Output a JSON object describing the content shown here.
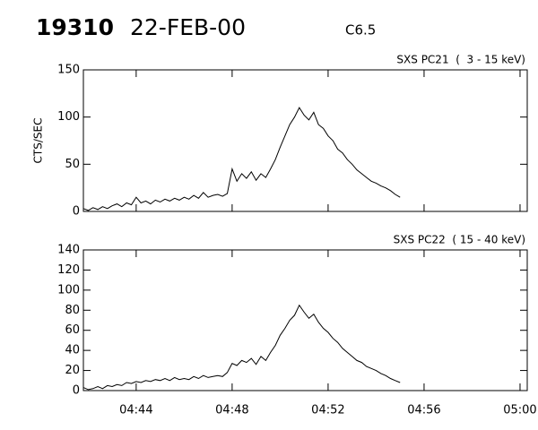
{
  "header": {
    "event": "19310",
    "date": "22-FEB-00",
    "class": "C6.5"
  },
  "chart_data": [
    {
      "type": "line",
      "title": "SXS PC21  (  3 - 15 keV)",
      "y_label": "CTS/SEC",
      "color": "#000000",
      "x": [
        41.8,
        42.0,
        42.2,
        42.4,
        42.6,
        42.8,
        43.0,
        43.2,
        43.4,
        43.6,
        43.8,
        44.0,
        44.2,
        44.4,
        44.6,
        44.8,
        45.0,
        45.2,
        45.4,
        45.6,
        45.8,
        46.0,
        46.2,
        46.4,
        46.6,
        46.8,
        47.0,
        47.2,
        47.4,
        47.6,
        47.8,
        48.0,
        48.2,
        48.4,
        48.6,
        48.8,
        49.0,
        49.2,
        49.4,
        49.6,
        49.8,
        50.0,
        50.2,
        50.4,
        50.6,
        50.8,
        51.0,
        51.2,
        51.4,
        51.6,
        51.8,
        52.0,
        52.2,
        52.4,
        52.6,
        52.8,
        53.0,
        53.2,
        53.4,
        53.6,
        53.8,
        54.0,
        54.2,
        54.4,
        54.6,
        54.8,
        55.0
      ],
      "values": [
        3,
        1,
        4,
        2,
        5,
        3,
        6,
        8,
        5,
        9,
        7,
        15,
        9,
        11,
        8,
        12,
        10,
        13,
        11,
        14,
        12,
        15,
        13,
        17,
        14,
        20,
        15,
        17,
        18,
        16,
        19,
        45,
        32,
        40,
        35,
        42,
        33,
        40,
        36,
        45,
        55,
        68,
        80,
        92,
        100,
        110,
        102,
        97,
        105,
        92,
        88,
        80,
        75,
        66,
        62,
        55,
        50,
        44,
        40,
        36,
        32,
        30,
        27,
        25,
        22,
        18,
        15
      ],
      "xlim": [
        41.8,
        60.3
      ],
      "xticks": [
        {
          "value": 44,
          "label": "04:44"
        },
        {
          "value": 48,
          "label": "04:48"
        },
        {
          "value": 52,
          "label": "04:52"
        },
        {
          "value": 56,
          "label": "04:56"
        },
        {
          "value": 60,
          "label": "05:00"
        }
      ],
      "ylim": [
        0,
        150
      ],
      "yticks": [
        0,
        50,
        100,
        150
      ]
    },
    {
      "type": "line",
      "title": "SXS PC22  ( 15 - 40 keV)",
      "color": "#000000",
      "x": [
        41.8,
        42.0,
        42.2,
        42.4,
        42.6,
        42.8,
        43.0,
        43.2,
        43.4,
        43.6,
        43.8,
        44.0,
        44.2,
        44.4,
        44.6,
        44.8,
        45.0,
        45.2,
        45.4,
        45.6,
        45.8,
        46.0,
        46.2,
        46.4,
        46.6,
        46.8,
        47.0,
        47.2,
        47.4,
        47.6,
        47.8,
        48.0,
        48.2,
        48.4,
        48.6,
        48.8,
        49.0,
        49.2,
        49.4,
        49.6,
        49.8,
        50.0,
        50.2,
        50.4,
        50.6,
        50.8,
        51.0,
        51.2,
        51.4,
        51.6,
        51.8,
        52.0,
        52.2,
        52.4,
        52.6,
        52.8,
        53.0,
        53.2,
        53.4,
        53.6,
        53.8,
        54.0,
        54.2,
        54.4,
        54.6,
        54.8,
        55.0
      ],
      "values": [
        3,
        1,
        2,
        4,
        2,
        5,
        4,
        6,
        5,
        8,
        7,
        9,
        8,
        10,
        9,
        11,
        10,
        12,
        10,
        13,
        11,
        12,
        11,
        14,
        12,
        15,
        13,
        14,
        15,
        14,
        18,
        27,
        25,
        30,
        28,
        32,
        26,
        34,
        30,
        38,
        45,
        55,
        62,
        70,
        75,
        85,
        78,
        72,
        76,
        68,
        62,
        58,
        52,
        48,
        42,
        38,
        34,
        30,
        28,
        24,
        22,
        20,
        17,
        15,
        12,
        10,
        8
      ],
      "xlim": [
        41.8,
        60.3
      ],
      "xticks": [
        {
          "value": 44,
          "label": "04:44"
        },
        {
          "value": 48,
          "label": "04:48"
        },
        {
          "value": 52,
          "label": "04:52"
        },
        {
          "value": 56,
          "label": "04:56"
        },
        {
          "value": 60,
          "label": "05:00"
        }
      ],
      "ylim": [
        0,
        140
      ],
      "yticks": [
        0,
        20,
        40,
        60,
        80,
        100,
        120,
        140
      ]
    }
  ]
}
